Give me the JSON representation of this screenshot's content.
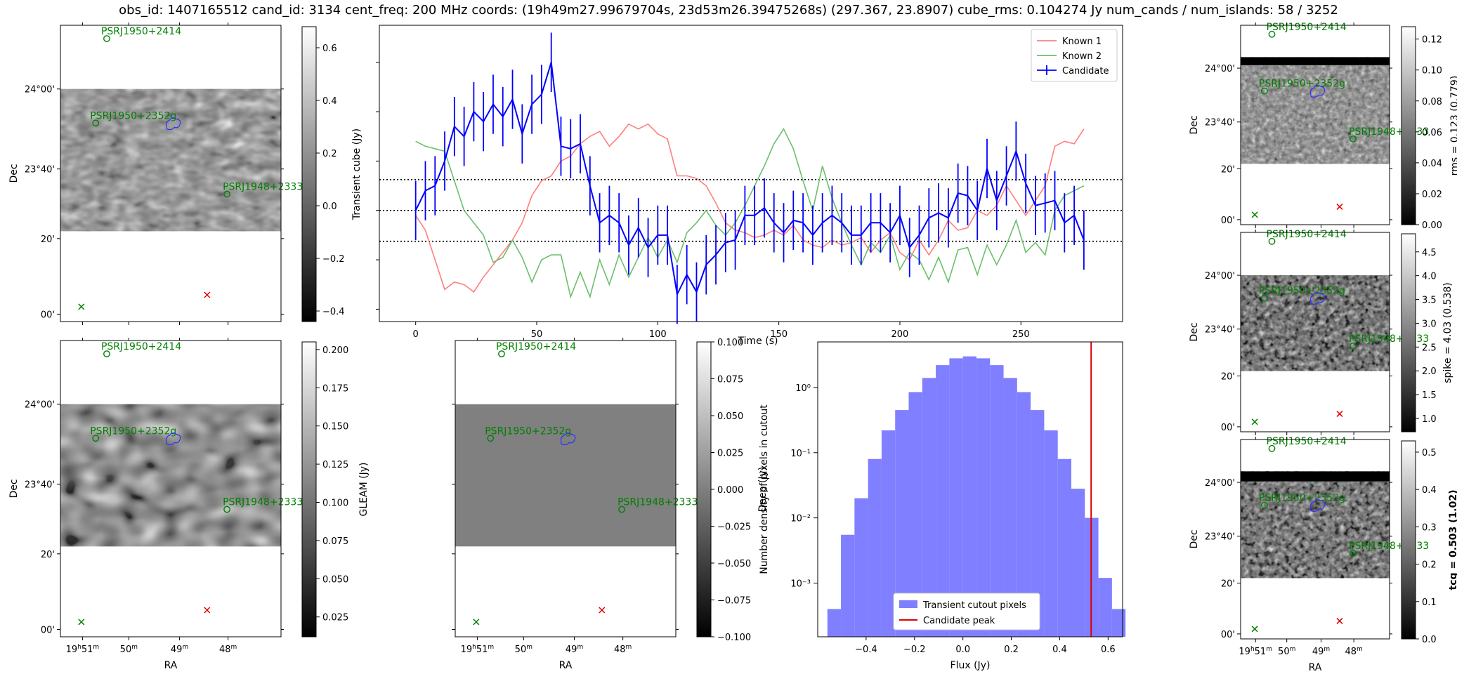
{
  "header": {
    "title": "obs_id: 1407165512 cand_id: 3134 cent_freq: 200 MHz coords: (19h49m27.99679704s, 23d53m26.39475268s) (297.367, 23.8907) cube_rms: 0.104274 Jy num_cands / num_islands: 58 / 3252"
  },
  "sky_axes": {
    "xlabel": "RA",
    "ylabel": "Dec",
    "ra_ticks": [
      {
        "h": "19",
        "m": "51",
        "full": true
      },
      {
        "m": "50"
      },
      {
        "m": "49"
      },
      {
        "m": "48"
      }
    ],
    "dec_ticks": [
      "24°00'",
      "23°40'",
      "20'",
      "00'"
    ]
  },
  "sources": [
    {
      "name": "PSRJ1950+2414",
      "marker": "circle",
      "color": "#008000"
    },
    {
      "name": "PSRJ1950+2352g",
      "marker": "circle",
      "color": "#008000"
    },
    {
      "name": "PSRJ1948+2333",
      "marker": "circle",
      "color": "#008000"
    }
  ],
  "panels": {
    "transient_cutout": {
      "colorbar_label": "Transient cube (Jy)",
      "colorbar_ticks": [
        "0.6",
        "0.4",
        "0.2",
        "0.0",
        "−0.2",
        "−0.4"
      ],
      "colorbar_range": [
        -0.44,
        0.68
      ]
    },
    "gleam": {
      "colorbar_label": "GLEAM (Jy)",
      "colorbar_ticks": [
        "0.200",
        "0.175",
        "0.150",
        "0.125",
        "0.100",
        "0.075",
        "0.050",
        "0.025"
      ],
      "colorbar_range": [
        0.012,
        0.205
      ]
    },
    "deep": {
      "colorbar_label": "Deep (Jy)",
      "colorbar_ticks": [
        "0.100",
        "0.075",
        "0.050",
        "0.025",
        "0.000",
        "−0.025",
        "−0.050",
        "−0.075",
        "−0.100"
      ],
      "colorbar_range": [
        -0.1,
        0.1
      ]
    },
    "rms": {
      "colorbar_label": "rms = 0.123 (0.779)",
      "colorbar_ticks": [
        "0.12",
        "0.10",
        "0.08",
        "0.06",
        "0.04",
        "0.02",
        "0.00"
      ],
      "colorbar_range": [
        0.0,
        0.128
      ]
    },
    "spike": {
      "colorbar_label": "spike = 4.03 (0.538)",
      "colorbar_ticks": [
        "4.5",
        "4.0",
        "3.5",
        "3.0",
        "2.5",
        "2.0",
        "1.5",
        "1.0"
      ],
      "colorbar_range": [
        0.72,
        4.88
      ]
    },
    "tcg": {
      "colorbar_label": "tcg = 0.503 (1.02)",
      "colorbar_ticks": [
        "0.5",
        "0.4",
        "0.3",
        "0.2",
        "0.1",
        "0.0"
      ],
      "colorbar_range": [
        0.0,
        0.53
      ]
    }
  },
  "chart_data": [
    {
      "type": "line",
      "name": "lightcurve",
      "xlabel": "Time (s)",
      "ylabel": "",
      "xlim": [
        -15,
        292
      ],
      "ylim": [
        -0.45,
        0.75
      ],
      "xticks": [
        0,
        50,
        100,
        150,
        200,
        250
      ],
      "hlines": [
        -0.125,
        0.0,
        0.125
      ],
      "legend": [
        "Known 1",
        "Known 2",
        "Candidate"
      ],
      "legend_position": "top-right",
      "x": [
        0,
        4,
        8,
        12,
        16,
        20,
        24,
        28,
        32,
        36,
        40,
        44,
        48,
        52,
        56,
        60,
        64,
        68,
        72,
        76,
        80,
        84,
        88,
        92,
        96,
        100,
        104,
        108,
        112,
        116,
        120,
        124,
        128,
        132,
        136,
        140,
        144,
        148,
        152,
        156,
        160,
        164,
        168,
        172,
        176,
        180,
        184,
        188,
        192,
        196,
        200,
        204,
        208,
        212,
        216,
        220,
        224,
        228,
        232,
        236,
        240,
        244,
        248,
        252,
        256,
        260,
        264,
        268,
        272,
        276
      ],
      "series": [
        {
          "name": "Known 1",
          "color": "#ff7f7f",
          "values": [
            -0.02,
            -0.08,
            -0.2,
            -0.32,
            -0.29,
            -0.3,
            -0.33,
            -0.27,
            -0.22,
            -0.17,
            -0.12,
            -0.05,
            0.06,
            0.12,
            0.14,
            0.2,
            0.22,
            0.27,
            0.3,
            0.32,
            0.26,
            0.3,
            0.35,
            0.33,
            0.35,
            0.31,
            0.29,
            0.14,
            0.14,
            0.13,
            0.1,
            0.03,
            -0.05,
            -0.08,
            -0.09,
            -0.11,
            -0.1,
            -0.08,
            -0.1,
            -0.06,
            -0.12,
            -0.14,
            -0.15,
            -0.12,
            -0.14,
            -0.13,
            -0.11,
            -0.17,
            -0.12,
            -0.09,
            -0.17,
            -0.2,
            -0.12,
            -0.18,
            -0.12,
            -0.04,
            -0.08,
            -0.07,
            0.0,
            -0.02,
            0.02,
            0.1,
            0.04,
            -0.02,
            0.04,
            0.1,
            0.26,
            0.28,
            0.27,
            0.33
          ]
        },
        {
          "name": "Known 2",
          "color": "#6cbf6c",
          "values": [
            0.28,
            0.26,
            0.25,
            0.24,
            0.12,
            0.0,
            -0.05,
            -0.1,
            -0.21,
            -0.19,
            -0.12,
            -0.19,
            -0.29,
            -0.2,
            -0.18,
            -0.18,
            -0.35,
            -0.25,
            -0.35,
            -0.2,
            -0.3,
            -0.18,
            -0.27,
            -0.19,
            -0.11,
            -0.19,
            -0.12,
            -0.21,
            -0.09,
            -0.05,
            0.0,
            -0.06,
            -0.1,
            -0.05,
            0.02,
            0.1,
            0.18,
            0.27,
            0.33,
            0.25,
            0.12,
            0.0,
            0.18,
            0.05,
            -0.05,
            -0.14,
            -0.22,
            -0.13,
            -0.17,
            -0.1,
            -0.24,
            -0.17,
            -0.2,
            -0.28,
            -0.19,
            -0.29,
            -0.16,
            -0.15,
            -0.26,
            -0.14,
            -0.22,
            -0.14,
            -0.04,
            -0.17,
            -0.13,
            -0.18,
            0.0,
            0.06,
            0.08,
            0.1
          ]
        },
        {
          "name": "Candidate",
          "color": "#0000ff",
          "errorbar": 0.12,
          "values": [
            0.0,
            0.08,
            0.1,
            0.2,
            0.34,
            0.3,
            0.4,
            0.36,
            0.43,
            0.38,
            0.45,
            0.31,
            0.43,
            0.47,
            0.6,
            0.26,
            0.25,
            0.27,
            0.1,
            -0.05,
            -0.02,
            -0.05,
            -0.14,
            -0.07,
            -0.15,
            -0.1,
            -0.1,
            -0.34,
            -0.26,
            -0.33,
            -0.22,
            -0.18,
            -0.13,
            -0.12,
            -0.02,
            -0.02,
            0.01,
            -0.05,
            -0.09,
            -0.04,
            -0.05,
            -0.1,
            -0.05,
            -0.02,
            -0.05,
            -0.1,
            -0.1,
            -0.05,
            -0.05,
            -0.09,
            -0.02,
            -0.15,
            -0.1,
            -0.03,
            -0.01,
            -0.03,
            0.07,
            0.06,
            0.0,
            0.17,
            0.04,
            0.14,
            0.24,
            0.11,
            0.02,
            0.03,
            0.04,
            -0.05,
            -0.02,
            -0.12
          ]
        }
      ]
    },
    {
      "type": "bar",
      "name": "histogram",
      "xlabel": "Flux (Jy)",
      "ylabel": "Number density of pixels in cutout",
      "yscale": "log",
      "xlim": [
        -0.6,
        0.66
      ],
      "ylim": [
        0.00015,
        5
      ],
      "xticks": [
        "−0.4",
        "−0.2",
        "0.0",
        "0.2",
        "0.4",
        "0.6"
      ],
      "xtick_values": [
        -0.4,
        -0.2,
        0.0,
        0.2,
        0.4,
        0.6
      ],
      "yticks": [
        "10⁰",
        "10⁻¹",
        "10⁻²",
        "10⁻³"
      ],
      "bin_edges": [
        -0.56,
        -0.504,
        -0.448,
        -0.392,
        -0.336,
        -0.28,
        -0.224,
        -0.168,
        -0.112,
        -0.056,
        0.0,
        0.056,
        0.112,
        0.168,
        0.224,
        0.28,
        0.336,
        0.392,
        0.448,
        0.504,
        0.56,
        0.616,
        0.672
      ],
      "values": [
        0.0004,
        0.0055,
        0.02,
        0.08,
        0.22,
        0.45,
        0.85,
        1.4,
        2.2,
        2.8,
        3.0,
        2.8,
        2.2,
        1.4,
        0.85,
        0.45,
        0.22,
        0.08,
        0.028,
        0.01,
        0.0012,
        0.0004
      ],
      "candidate_peak": 0.53,
      "legend": [
        "Transient cutout pixels",
        "Candidate peak"
      ],
      "legend_position": "bottom-center"
    }
  ]
}
